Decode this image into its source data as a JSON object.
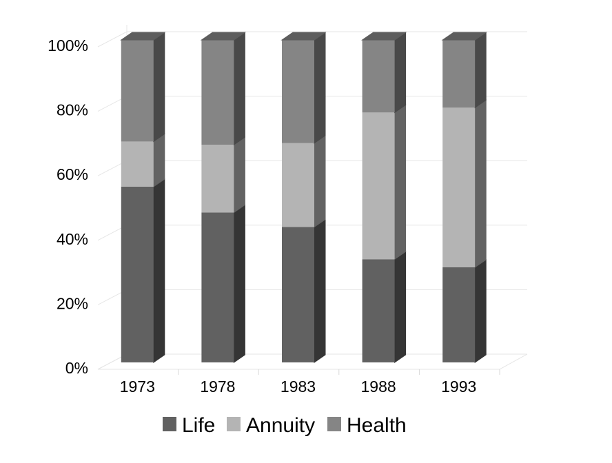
{
  "chart_data": {
    "type": "bar",
    "stacked": true,
    "stack_mode": "percent",
    "three_d": true,
    "title": "",
    "xlabel": "",
    "ylabel": "",
    "categories": [
      "1973",
      "1978",
      "1983",
      "1988",
      "1993"
    ],
    "series": [
      {
        "name": "Life",
        "values": [
          54.5,
          46.5,
          42,
          32,
          29.5
        ],
        "color": "#616161"
      },
      {
        "name": "Annuity",
        "values": [
          14,
          21,
          26,
          45.5,
          49.5
        ],
        "color": "#b4b4b4"
      },
      {
        "name": "Health",
        "values": [
          31.5,
          32.5,
          32,
          22.5,
          21
        ],
        "color": "#858585"
      }
    ],
    "ylim": [
      0,
      100
    ],
    "yticks": [
      "0%",
      "20%",
      "40%",
      "60%",
      "80%",
      "100%"
    ],
    "grid": true,
    "legend_position": "bottom"
  }
}
